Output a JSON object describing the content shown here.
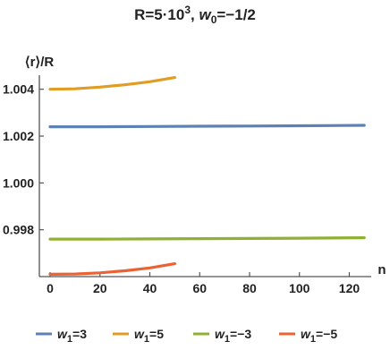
{
  "chart_data": {
    "type": "line",
    "title_main": "R=5·10",
    "title_sup": "3",
    "title_rest": ", ",
    "title_w": "w",
    "title_sub": "0",
    "title_end": "=−1/2",
    "xlabel": "n",
    "ylabel": "⟨r⟩/R",
    "xlim": [
      0,
      127
    ],
    "ylim": [
      0.996,
      1.0046
    ],
    "x_ticks": [
      0,
      20,
      40,
      60,
      80,
      100,
      120
    ],
    "y_ticks": [
      0.998,
      1.0,
      1.002,
      1.004
    ],
    "y_tick_labels": [
      "0.998",
      "1.000",
      "1.002",
      "1.004"
    ],
    "grid": false,
    "legend_position": "bottom",
    "series": [
      {
        "legend_var": "w",
        "legend_sub": "1",
        "legend_val": "=3",
        "color": "#5e81b5",
        "x": [
          0,
          20,
          40,
          60,
          80,
          100,
          126
        ],
        "y": [
          1.0024,
          1.0024,
          1.00241,
          1.00242,
          1.00243,
          1.00244,
          1.00246
        ]
      },
      {
        "legend_var": "w",
        "legend_sub": "1",
        "legend_val": "=5",
        "color": "#e19c24",
        "x": [
          0,
          10,
          20,
          30,
          40,
          50
        ],
        "y": [
          1.004,
          1.00402,
          1.00409,
          1.00419,
          1.00432,
          1.0045
        ]
      },
      {
        "legend_var": "w",
        "legend_sub": "1",
        "legend_val": "=−3",
        "color": "#8fb032",
        "x": [
          0,
          20,
          40,
          60,
          80,
          100,
          126
        ],
        "y": [
          0.9976,
          0.9976,
          0.99761,
          0.99762,
          0.99763,
          0.99764,
          0.99766
        ]
      },
      {
        "legend_var": "w",
        "legend_sub": "1",
        "legend_val": "=−5",
        "color": "#eb6235",
        "x": [
          0,
          10,
          20,
          30,
          40,
          50
        ],
        "y": [
          0.9961,
          0.99611,
          0.99616,
          0.99625,
          0.99637,
          0.99655
        ]
      }
    ]
  }
}
